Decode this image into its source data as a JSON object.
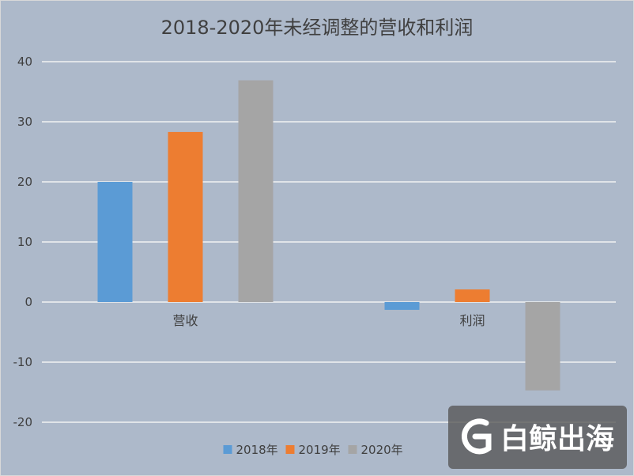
{
  "chart_data": {
    "type": "bar",
    "title": "2018-2020年未经调整的营收和利润",
    "categories": [
      "营收",
      "利润"
    ],
    "series": [
      {
        "name": "2018年",
        "color": "#5b9bd5",
        "values": [
          20.0,
          -1.3
        ]
      },
      {
        "name": "2019年",
        "color": "#ed7d31",
        "values": [
          28.3,
          2.1
        ]
      },
      {
        "name": "2020年",
        "color": "#a5a5a5",
        "values": [
          36.9,
          -14.7
        ]
      }
    ],
    "ylim": [
      -20,
      40
    ],
    "yticks": [
      40,
      30,
      20,
      10,
      0,
      -10,
      -20
    ],
    "xlabel": "",
    "ylabel": "",
    "grid": true,
    "legend_position": "bottom"
  },
  "watermark": {
    "text": "白鲸出海",
    "icon": "g-logo-icon"
  }
}
